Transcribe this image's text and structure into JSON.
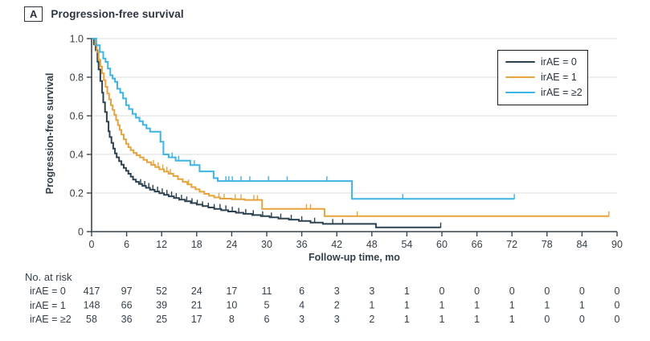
{
  "panel": {
    "label": "A",
    "title": "Progression-free survival"
  },
  "colors": {
    "irae0": "#2c4251",
    "irae1": "#e8a33c",
    "irae2": "#3cb5e5",
    "grid": "#dbdbdb",
    "axis": "#39454f",
    "text": "#333f48"
  },
  "axes": {
    "x": {
      "label": "Follow-up time, mo",
      "tick_values": [
        0,
        6,
        12,
        18,
        24,
        30,
        36,
        42,
        48,
        54,
        60,
        66,
        72,
        78,
        84,
        90
      ],
      "min": 0,
      "max": 90
    },
    "y": {
      "label": "Progression-free survival",
      "tick_labels": [
        "1.0",
        "0.8",
        "0.6",
        "0.4",
        "0.2",
        "0"
      ],
      "tick_values": [
        1,
        0.8,
        0.6,
        0.4,
        0.2,
        0
      ],
      "grid_values": [
        0.2,
        0.4,
        0.6,
        0.8,
        1.0
      ],
      "min": 0,
      "max": 1
    }
  },
  "legend": {
    "items": [
      {
        "label": "irAE = 0"
      },
      {
        "label": "irAE = 1"
      },
      {
        "label": "irAE = ≥2"
      }
    ]
  },
  "chart_data": {
    "type": "line",
    "subtype": "kaplan-meier-step",
    "title": "Progression-free survival",
    "xlabel": "Follow-up time, mo",
    "ylabel": "Progression-free survival",
    "xlim": [
      0,
      90
    ],
    "ylim": [
      0,
      1
    ],
    "grid": true,
    "legend_position": "top-right",
    "series": [
      {
        "name": "irAE = 0",
        "color": "#2c4251",
        "end": 59.8,
        "steps": [
          [
            0,
            1.0
          ],
          [
            0.4,
            0.97
          ],
          [
            0.7,
            0.94
          ],
          [
            1.0,
            0.88
          ],
          [
            1.2,
            0.84
          ],
          [
            1.5,
            0.78
          ],
          [
            1.8,
            0.72
          ],
          [
            2.0,
            0.67
          ],
          [
            2.3,
            0.62
          ],
          [
            2.6,
            0.57
          ],
          [
            2.9,
            0.52
          ],
          [
            3.1,
            0.49
          ],
          [
            3.4,
            0.46
          ],
          [
            3.7,
            0.43
          ],
          [
            4.0,
            0.405
          ],
          [
            4.3,
            0.385
          ],
          [
            4.7,
            0.365
          ],
          [
            5.1,
            0.347
          ],
          [
            5.5,
            0.33
          ],
          [
            5.9,
            0.315
          ],
          [
            6.3,
            0.3
          ],
          [
            6.7,
            0.285
          ],
          [
            7.1,
            0.27
          ],
          [
            7.6,
            0.258
          ],
          [
            8.1,
            0.247
          ],
          [
            8.7,
            0.237
          ],
          [
            9.3,
            0.227
          ],
          [
            10.0,
            0.217
          ],
          [
            10.8,
            0.208
          ],
          [
            11.6,
            0.199
          ],
          [
            12.4,
            0.191
          ],
          [
            13.2,
            0.183
          ],
          [
            14.1,
            0.174
          ],
          [
            15.0,
            0.166
          ],
          [
            16.0,
            0.157
          ],
          [
            17.0,
            0.148
          ],
          [
            18.0,
            0.14
          ],
          [
            19.0,
            0.132
          ],
          [
            20.0,
            0.125
          ],
          [
            21.0,
            0.118
          ],
          [
            22.2,
            0.111
          ],
          [
            23.4,
            0.104
          ],
          [
            24.7,
            0.098
          ],
          [
            26.0,
            0.092
          ],
          [
            27.5,
            0.086
          ],
          [
            29.0,
            0.08
          ],
          [
            30.5,
            0.074
          ],
          [
            32.0,
            0.068
          ],
          [
            33.8,
            0.062
          ],
          [
            35.5,
            0.055
          ],
          [
            37.5,
            0.047
          ],
          [
            39.6,
            0.04
          ],
          [
            48.7,
            0.022
          ]
        ],
        "censors": [
          8.4,
          9.1,
          9.8,
          10.5,
          11.3,
          12.1,
          12.9,
          13.7,
          14.5,
          15.4,
          16.3,
          17.2,
          18.1,
          19.0,
          20.0,
          21.0,
          22.0,
          23.0,
          24.1,
          25.2,
          26.4,
          27.7,
          29.3,
          30.8,
          32.4,
          34.2,
          36.0,
          38.2,
          41.3,
          43.0,
          59.8
        ]
      },
      {
        "name": "irAE = 1",
        "color": "#e8a33c",
        "end": 88.6,
        "steps": [
          [
            0,
            1.0
          ],
          [
            0.6,
            0.97
          ],
          [
            0.9,
            0.93
          ],
          [
            1.2,
            0.89
          ],
          [
            1.5,
            0.855
          ],
          [
            1.8,
            0.82
          ],
          [
            2.1,
            0.785
          ],
          [
            2.4,
            0.75
          ],
          [
            2.7,
            0.715
          ],
          [
            3.0,
            0.685
          ],
          [
            3.3,
            0.655
          ],
          [
            3.6,
            0.63
          ],
          [
            3.9,
            0.605
          ],
          [
            4.2,
            0.578
          ],
          [
            4.5,
            0.552
          ],
          [
            4.8,
            0.527
          ],
          [
            5.1,
            0.503
          ],
          [
            5.5,
            0.478
          ],
          [
            5.9,
            0.455
          ],
          [
            6.3,
            0.437
          ],
          [
            6.7,
            0.422
          ],
          [
            7.2,
            0.408
          ],
          [
            7.7,
            0.396
          ],
          [
            8.3,
            0.384
          ],
          [
            8.9,
            0.372
          ],
          [
            9.5,
            0.359
          ],
          [
            10.2,
            0.346
          ],
          [
            10.9,
            0.334
          ],
          [
            11.6,
            0.323
          ],
          [
            12.4,
            0.311
          ],
          [
            13.2,
            0.3
          ],
          [
            14.0,
            0.288
          ],
          [
            14.8,
            0.272
          ],
          [
            15.6,
            0.258
          ],
          [
            16.4,
            0.245
          ],
          [
            17.1,
            0.231
          ],
          [
            17.8,
            0.219
          ],
          [
            18.5,
            0.207
          ],
          [
            19.3,
            0.196
          ],
          [
            20.1,
            0.186
          ],
          [
            21.0,
            0.177
          ],
          [
            22.0,
            0.171
          ],
          [
            24.0,
            0.168
          ],
          [
            26.2,
            0.164
          ],
          [
            29.2,
            0.118
          ],
          [
            39.9,
            0.08
          ]
        ],
        "censors": [
          10.6,
          11.4,
          12.2,
          12.9,
          13.5,
          16.6,
          21.8,
          22.7,
          24.6,
          25.6,
          27.8,
          28.4,
          36.8,
          37.5,
          45.5,
          88.6
        ]
      },
      {
        "name": "irAE = ≥2",
        "color": "#3cb5e5",
        "end": 72.4,
        "steps": [
          [
            0,
            1.0
          ],
          [
            0.8,
            0.966
          ],
          [
            1.4,
            0.931
          ],
          [
            2.0,
            0.897
          ],
          [
            2.4,
            0.879
          ],
          [
            2.8,
            0.845
          ],
          [
            3.2,
            0.81
          ],
          [
            3.6,
            0.793
          ],
          [
            4.0,
            0.776
          ],
          [
            4.4,
            0.74
          ],
          [
            4.9,
            0.72
          ],
          [
            5.4,
            0.69
          ],
          [
            5.9,
            0.655
          ],
          [
            6.4,
            0.635
          ],
          [
            7.0,
            0.61
          ],
          [
            7.6,
            0.59
          ],
          [
            8.2,
            0.572
          ],
          [
            8.8,
            0.553
          ],
          [
            9.4,
            0.535
          ],
          [
            10.0,
            0.518
          ],
          [
            11.8,
            0.466
          ],
          [
            12.3,
            0.4
          ],
          [
            13.2,
            0.385
          ],
          [
            14.4,
            0.368
          ],
          [
            16.9,
            0.345
          ],
          [
            18.5,
            0.312
          ],
          [
            20.9,
            0.277
          ],
          [
            21.6,
            0.262
          ],
          [
            44.6,
            0.17
          ]
        ],
        "censors": [
          13.8,
          14.9,
          17.6,
          23.0,
          23.5,
          24.1,
          25.6,
          27.1,
          30.3,
          33.5,
          40.3,
          53.3,
          72.4
        ]
      }
    ]
  },
  "risk_table": {
    "title": "No. at risk",
    "time_points": [
      0,
      6,
      12,
      18,
      24,
      30,
      36,
      42,
      48,
      54,
      60,
      66,
      72,
      78,
      84,
      90
    ],
    "rows": [
      {
        "label": "irAE = 0",
        "counts": [
          417,
          97,
          52,
          24,
          17,
          11,
          6,
          3,
          3,
          1,
          0,
          0,
          0,
          0,
          0,
          0
        ]
      },
      {
        "label": "irAE = 1",
        "counts": [
          148,
          66,
          39,
          21,
          10,
          5,
          4,
          2,
          1,
          1,
          1,
          1,
          1,
          1,
          1,
          0
        ]
      },
      {
        "label": "irAE = ≥2",
        "counts": [
          58,
          36,
          25,
          17,
          8,
          6,
          3,
          3,
          2,
          1,
          1,
          1,
          1,
          0,
          0,
          0
        ]
      }
    ]
  }
}
